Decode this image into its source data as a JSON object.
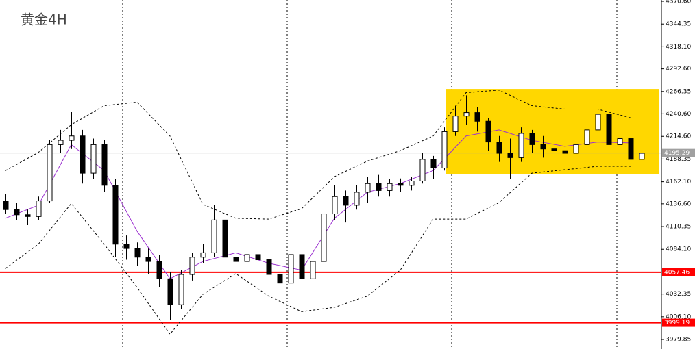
{
  "chart_data": {
    "type": "candlestick",
    "title": "黄金4H",
    "ylim": [
      3968.8,
      4372.2
    ],
    "yticks": [
      {
        "value": 4370.6,
        "label": "4370.60"
      },
      4344.35,
      {
        "value": 4318.1,
        "label": "4318.10"
      },
      {
        "value": 4292.6,
        "label": "4292.60"
      },
      4266.35,
      {
        "value": 4240.6,
        "label": "4240.60"
      },
      {
        "value": 4214.6,
        "label": "4214.60"
      },
      4188.35,
      {
        "value": 4162.1,
        "label": "4162.10"
      },
      {
        "value": 4136.6,
        "label": "4136.60"
      },
      4110.35,
      {
        "value": 4084.1,
        "label": "4084.10"
      },
      4032.35,
      {
        "value": 4006.1,
        "label": "4006.10"
      },
      3979.85
    ],
    "ohlc": [
      [
        4140,
        4148,
        4125,
        4130
      ],
      [
        4130,
        4138,
        4118,
        4124
      ],
      [
        4124,
        4130,
        4112,
        4122
      ],
      [
        4122,
        4145,
        4118,
        4140
      ],
      [
        4140,
        4210,
        4138,
        4205
      ],
      [
        4205,
        4222,
        4195,
        4210
      ],
      [
        4210,
        4243,
        4200,
        4215
      ],
      [
        4215,
        4222,
        4160,
        4172
      ],
      [
        4172,
        4212,
        4165,
        4205
      ],
      [
        4205,
        4210,
        4150,
        4158
      ],
      [
        4158,
        4165,
        4075,
        4090
      ],
      [
        4090,
        4100,
        4072,
        4085
      ],
      [
        4085,
        4092,
        4065,
        4075
      ],
      [
        4075,
        4085,
        4055,
        4070
      ],
      [
        4070,
        4078,
        4040,
        4050
      ],
      [
        4050,
        4058,
        4002,
        4020
      ],
      [
        4020,
        4060,
        4015,
        4055
      ],
      [
        4055,
        4080,
        4048,
        4075
      ],
      [
        4075,
        4090,
        4068,
        4080
      ],
      [
        4080,
        4135,
        4075,
        4118
      ],
      [
        4118,
        4128,
        4065,
        4075
      ],
      [
        4075,
        4090,
        4055,
        4070
      ],
      [
        4070,
        4095,
        4060,
        4078
      ],
      [
        4078,
        4090,
        4062,
        4072
      ],
      [
        4072,
        4080,
        4040,
        4055
      ],
      [
        4055,
        4062,
        4025,
        4045
      ],
      [
        4045,
        4085,
        4040,
        4078
      ],
      [
        4078,
        4090,
        4045,
        4050
      ],
      [
        4050,
        4075,
        4042,
        4070
      ],
      [
        4070,
        4130,
        4065,
        4125
      ],
      [
        4125,
        4158,
        4118,
        4145
      ],
      [
        4145,
        4152,
        4115,
        4135
      ],
      [
        4135,
        4158,
        4130,
        4150
      ],
      [
        4150,
        4168,
        4138,
        4160
      ],
      [
        4160,
        4170,
        4145,
        4152
      ],
      [
        4152,
        4165,
        4145,
        4160
      ],
      [
        4160,
        4166,
        4150,
        4158
      ],
      [
        4158,
        4168,
        4152,
        4163
      ],
      [
        4163,
        4195,
        4160,
        4188
      ],
      [
        4188,
        4192,
        4165,
        4178
      ],
      [
        4178,
        4225,
        4175,
        4220
      ],
      [
        4220,
        4250,
        4215,
        4238
      ],
      [
        4238,
        4262,
        4228,
        4242
      ],
      [
        4242,
        4248,
        4220,
        4232
      ],
      [
        4232,
        4236,
        4198,
        4208
      ],
      [
        4208,
        4215,
        4185,
        4195
      ],
      [
        4195,
        4212,
        4165,
        4190
      ],
      [
        4190,
        4225,
        4185,
        4218
      ],
      [
        4218,
        4222,
        4195,
        4205
      ],
      [
        4205,
        4215,
        4190,
        4200
      ],
      [
        4200,
        4210,
        4180,
        4198
      ],
      [
        4198,
        4208,
        4185,
        4195
      ],
      [
        4195,
        4212,
        4190,
        4205
      ],
      [
        4205,
        4228,
        4200,
        4222
      ],
      [
        4222,
        4259,
        4215,
        4240
      ],
      [
        4240,
        4245,
        4195,
        4205
      ],
      [
        4205,
        4218,
        4192,
        4212
      ],
      [
        4212,
        4215,
        4182,
        4188
      ],
      [
        4188,
        4198,
        4182,
        4195
      ]
    ],
    "line_x": [
      0,
      3,
      6,
      9,
      12,
      15,
      18,
      21,
      24,
      27,
      30,
      33,
      36,
      39,
      42,
      45,
      48,
      51,
      54,
      57
    ],
    "lines": [
      {
        "color": "#000000",
        "dashed": true,
        "values": [
          4175,
          4196,
          4228,
          4250,
          4254,
          4215,
          4136,
          4120,
          4119,
          4131,
          4168,
          4186,
          4198,
          4215,
          4265,
          4268,
          4250,
          4246,
          4246,
          4236
        ]
      },
      {
        "color": "#000000",
        "dashed": true,
        "values": [
          4062,
          4090,
          4137,
          4090,
          4040,
          3986,
          4032,
          4056,
          4030,
          4012,
          4017,
          4030,
          4060,
          4119,
          4119,
          4138,
          4172,
          4176,
          4180,
          4180
        ]
      },
      {
        "color": "#9b30d0",
        "dashed": false,
        "values": [
          4120,
          4135,
          4205,
          4175,
          4105,
          4050,
          4070,
          4080,
          4068,
          4060,
          4120,
          4150,
          4160,
          4175,
          4215,
          4222,
          4210,
          4203,
          4208,
          4207
        ]
      }
    ],
    "zone": {
      "color": "#ffd700",
      "ylim": [
        4171.3,
        4269.3
      ]
    },
    "hlines": [
      {
        "value": 4195.29,
        "color": "#a0a0a0"
      },
      {
        "value": 4057.46,
        "color": "#ff0000"
      },
      {
        "value": 3999.19,
        "color": "#ff0000"
      }
    ]
  }
}
